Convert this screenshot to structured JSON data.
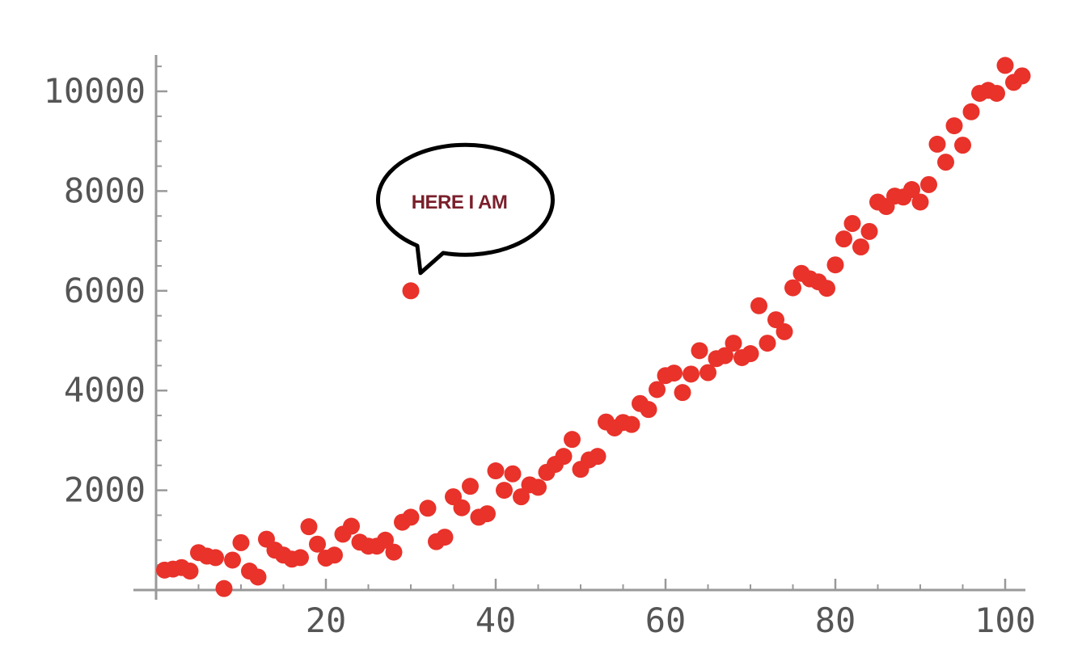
{
  "chart_data": {
    "type": "scatter",
    "title": "",
    "xlabel": "",
    "ylabel": "",
    "xlim": [
      0,
      103
    ],
    "ylim": [
      0,
      10800
    ],
    "x_ticks": [
      20,
      40,
      60,
      80,
      100
    ],
    "y_ticks": [
      2000,
      4000,
      6000,
      8000,
      10000
    ],
    "x_tick_labels": [
      "20",
      "40",
      "60",
      "80",
      "100"
    ],
    "y_tick_labels": [
      "2000",
      "4000",
      "6000",
      "8000",
      "10000"
    ],
    "grid": false,
    "marker_color": "#e8322a",
    "series": [
      {
        "points": [
          [
            1,
            400
          ],
          [
            2,
            420
          ],
          [
            3,
            450
          ],
          [
            4,
            380
          ],
          [
            5,
            750
          ],
          [
            6,
            680
          ],
          [
            7,
            650
          ],
          [
            8,
            30
          ],
          [
            9,
            600
          ],
          [
            10,
            950
          ],
          [
            11,
            380
          ],
          [
            12,
            260
          ],
          [
            13,
            1020
          ],
          [
            14,
            800
          ],
          [
            15,
            700
          ],
          [
            16,
            620
          ],
          [
            17,
            650
          ],
          [
            18,
            1270
          ],
          [
            19,
            920
          ],
          [
            20,
            640
          ],
          [
            21,
            700
          ],
          [
            22,
            1120
          ],
          [
            23,
            1280
          ],
          [
            24,
            960
          ],
          [
            25,
            880
          ],
          [
            26,
            880
          ],
          [
            27,
            1000
          ],
          [
            28,
            760
          ],
          [
            29,
            1360
          ],
          [
            30,
            1460
          ],
          [
            30,
            6000
          ],
          [
            32,
            1640
          ],
          [
            33,
            970
          ],
          [
            34,
            1060
          ],
          [
            35,
            1870
          ],
          [
            36,
            1650
          ],
          [
            37,
            2080
          ],
          [
            38,
            1460
          ],
          [
            39,
            1530
          ],
          [
            40,
            2390
          ],
          [
            41,
            2000
          ],
          [
            42,
            2330
          ],
          [
            43,
            1870
          ],
          [
            44,
            2110
          ],
          [
            45,
            2060
          ],
          [
            46,
            2360
          ],
          [
            47,
            2520
          ],
          [
            48,
            2680
          ],
          [
            49,
            3020
          ],
          [
            50,
            2420
          ],
          [
            51,
            2610
          ],
          [
            52,
            2680
          ],
          [
            53,
            3370
          ],
          [
            54,
            3250
          ],
          [
            55,
            3360
          ],
          [
            56,
            3320
          ],
          [
            57,
            3740
          ],
          [
            58,
            3620
          ],
          [
            59,
            4020
          ],
          [
            60,
            4300
          ],
          [
            61,
            4350
          ],
          [
            62,
            3960
          ],
          [
            63,
            4330
          ],
          [
            64,
            4800
          ],
          [
            65,
            4360
          ],
          [
            66,
            4640
          ],
          [
            67,
            4700
          ],
          [
            68,
            4950
          ],
          [
            69,
            4660
          ],
          [
            70,
            4740
          ],
          [
            71,
            5700
          ],
          [
            72,
            4950
          ],
          [
            73,
            5420
          ],
          [
            74,
            5180
          ],
          [
            75,
            6060
          ],
          [
            76,
            6350
          ],
          [
            77,
            6240
          ],
          [
            78,
            6180
          ],
          [
            79,
            6050
          ],
          [
            80,
            6520
          ],
          [
            81,
            7040
          ],
          [
            82,
            7350
          ],
          [
            83,
            6880
          ],
          [
            84,
            7190
          ],
          [
            85,
            7780
          ],
          [
            86,
            7690
          ],
          [
            87,
            7900
          ],
          [
            88,
            7880
          ],
          [
            89,
            8030
          ],
          [
            90,
            7780
          ],
          [
            91,
            8130
          ],
          [
            92,
            8940
          ],
          [
            93,
            8580
          ],
          [
            94,
            9310
          ],
          [
            95,
            8920
          ],
          [
            96,
            9590
          ],
          [
            97,
            9960
          ],
          [
            98,
            10020
          ],
          [
            99,
            9960
          ],
          [
            100,
            10520
          ],
          [
            101,
            10180
          ],
          [
            102,
            10310
          ]
        ]
      }
    ],
    "annotations": [
      {
        "text": "HERE I AM",
        "target": [
          30,
          6000
        ],
        "style": "speech-bubble"
      }
    ]
  }
}
